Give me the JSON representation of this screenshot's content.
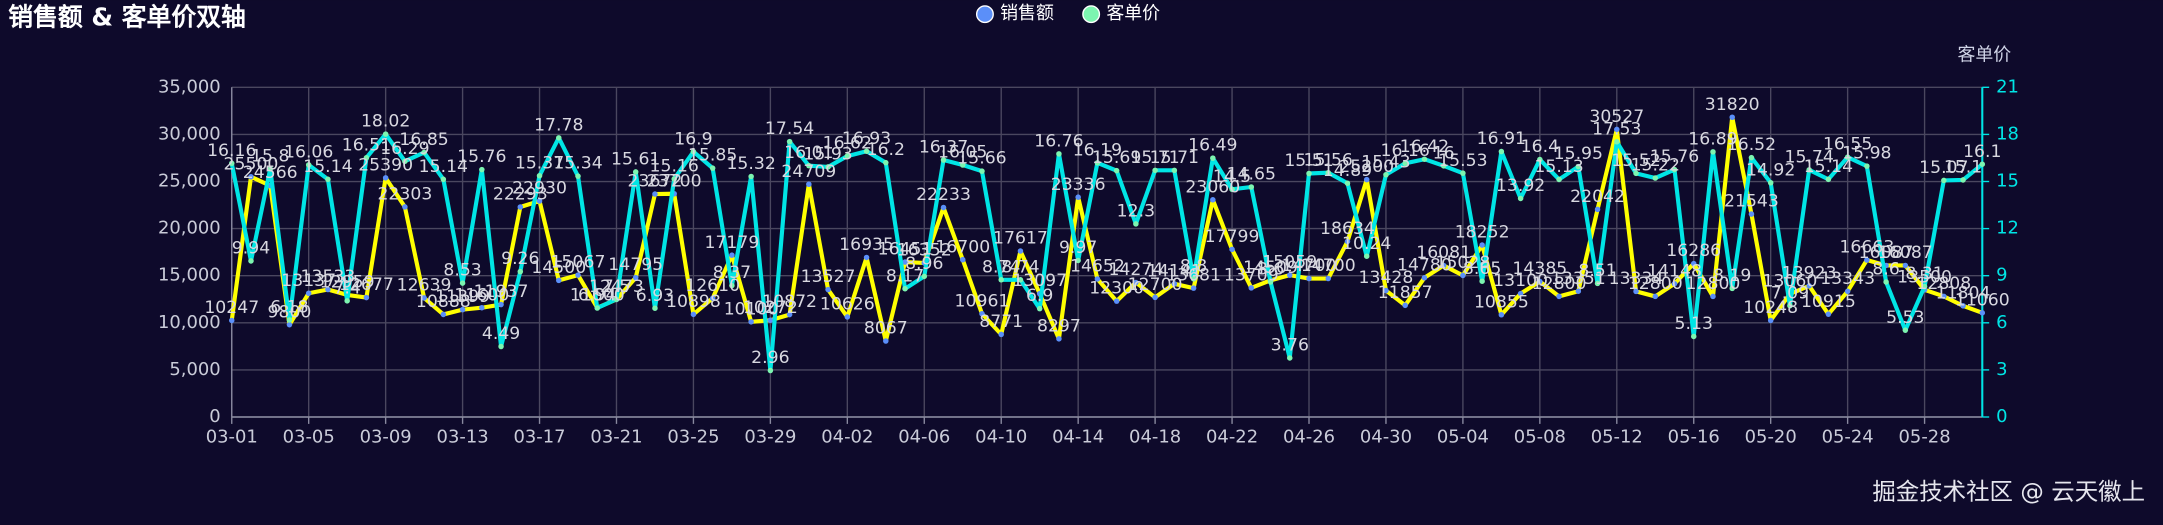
{
  "chart_data": {
    "type": "line",
    "title": "销售额 & 客单价双轴",
    "watermark": "掘金技术社区 @ 云天徽上",
    "y2_label": "客单价",
    "categories": [
      "03-01",
      null,
      null,
      null,
      "03-05",
      null,
      null,
      null,
      "03-09",
      null,
      null,
      null,
      "03-13",
      null,
      null,
      null,
      "03-17",
      null,
      null,
      null,
      "03-21",
      null,
      null,
      null,
      "03-25",
      null,
      null,
      null,
      "03-29",
      null,
      null,
      null,
      "04-02",
      null,
      null,
      null,
      "04-06",
      null,
      null,
      null,
      "04-10",
      null,
      null,
      null,
      "04-14",
      null,
      null,
      null,
      "04-18",
      null,
      null,
      null,
      "04-22",
      null,
      null,
      null,
      "04-26",
      null,
      null,
      null,
      "04-30",
      null,
      null,
      null,
      "05-04",
      null,
      null,
      null,
      "05-08",
      null,
      null,
      null,
      "05-12",
      null,
      null,
      null,
      "05-16",
      null,
      null,
      null,
      "05-20",
      null,
      null,
      null,
      "05-24",
      null,
      null,
      null,
      "05-28",
      null,
      null,
      null
    ],
    "series": [
      {
        "name": "销售额",
        "color": "#ffff00",
        "legend_color": "#5b8ff9",
        "values": [
          10247,
          25500,
          24566,
          9800,
          13137,
          13533,
          12959,
          12677,
          25390,
          22303,
          12639,
          10888,
          11399,
          11600,
          11937,
          22293,
          22930,
          14500,
          15067,
          11600,
          12473,
          14795,
          23672,
          23700,
          10898,
          12610,
          17179,
          10100,
          10272,
          10872,
          24709,
          13527,
          10626,
          16935,
          8067,
          16451,
          16352,
          22233,
          16700,
          10961,
          8771,
          17617,
          13097,
          8297,
          23336,
          14652,
          12300,
          14274,
          12700,
          14141,
          13681,
          23060,
          17799,
          13709,
          14509,
          15059,
          14700,
          14700,
          18634,
          25200,
          13428,
          11857,
          14780,
          16081,
          15028,
          18252,
          10855,
          13100,
          14385,
          12800,
          13351,
          22042,
          30527,
          13334,
          12800,
          14148,
          16286,
          12800,
          31820,
          21543,
          10248,
          13060,
          13923,
          10915,
          13343,
          16663,
          16087,
          16087,
          13500,
          12808,
          11804,
          11060
        ]
      },
      {
        "name": "客单价",
        "color": "#00e5e5",
        "legend_color": "#7cf5b0",
        "axis": "y2",
        "values": [
          16.16,
          9.94,
          15.8,
          6.18,
          16.06,
          15.14,
          7.4,
          16.51,
          18.02,
          16.29,
          16.85,
          15.14,
          8.53,
          15.76,
          4.49,
          9.26,
          15.37,
          17.78,
          15.34,
          6.94,
          7.5,
          15.61,
          6.93,
          15.16,
          16.9,
          15.85,
          8.37,
          15.32,
          2.96,
          17.54,
          16.01,
          15.93,
          16.62,
          16.93,
          16.2,
          8.17,
          8.96,
          16.37,
          16.05,
          15.66,
          8.74,
          8.74,
          6.9,
          16.76,
          9.97,
          16.19,
          15.69,
          12.3,
          15.71,
          15.71,
          8.8,
          16.49,
          14.5,
          14.65,
          8.6,
          3.76,
          15.51,
          15.56,
          14.89,
          10.24,
          15.43,
          16.16,
          16.42,
          16,
          15.53,
          8.65,
          16.91,
          13.92,
          16.4,
          15.13,
          15.95,
          8.51,
          17.53,
          15.52,
          15.22,
          15.76,
          5.13,
          16.89,
          8.19,
          16.52,
          14.92,
          7.09,
          15.74,
          15.14,
          16.55,
          15.98,
          8.6,
          5.53,
          8.31,
          15.07,
          15.1,
          16.1
        ]
      }
    ],
    "ylim": [
      0,
      35000
    ],
    "yticks": [
      0,
      {
        "value": 5000,
        "label": "5,000"
      },
      {
        "value": 10000,
        "label": "10,000"
      },
      {
        "value": 15000,
        "label": "15,000"
      },
      {
        "value": 20000,
        "label": "20,000"
      },
      {
        "value": 25000,
        "label": "25,000"
      },
      {
        "value": 30000,
        "label": "30,000"
      },
      {
        "value": 35000,
        "label": "35,000"
      }
    ],
    "y2lim": [
      0,
      21
    ],
    "y2ticks": [
      0,
      3,
      6,
      9,
      12,
      15,
      18,
      21
    ],
    "grid": true,
    "legend": "top"
  }
}
